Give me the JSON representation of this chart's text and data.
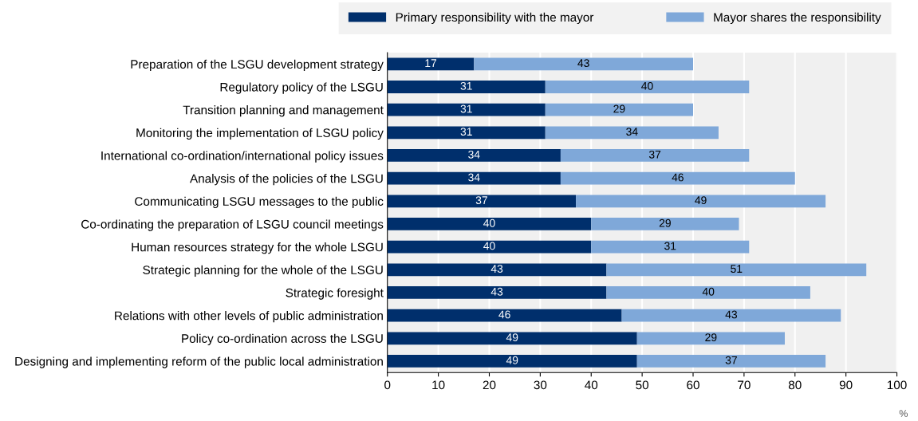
{
  "chart_data": {
    "type": "bar",
    "orientation": "horizontal",
    "stacked": true,
    "data_labels": true,
    "grid": "x",
    "legend": "top",
    "xlabel": "%",
    "categories": [
      "Preparation of the LSGU development strategy",
      "Regulatory policy of the LSGU",
      "Transition planning and management",
      "Monitoring the implementation of LSGU policy",
      "International co-ordination/international policy issues",
      "Analysis of the policies of the LSGU",
      "Communicating LSGU messages to the public",
      "Co-ordinating the preparation of LSGU council meetings",
      "Human resources strategy for the whole LSGU",
      "Strategic planning for the whole of the LSGU",
      "Strategic foresight",
      "Relations with other levels of public administration",
      "Policy co-ordination across the LSGU",
      "Designing and implementing reform of the public local administration"
    ],
    "series": [
      {
        "name": "Primary responsibility with the mayor",
        "color": "#002f6c",
        "values": [
          17,
          31,
          31,
          31,
          34,
          34,
          37,
          40,
          40,
          43,
          43,
          46,
          49,
          49
        ]
      },
      {
        "name": "Mayor shares the responsibility",
        "color": "#7fa8d9",
        "values": [
          43,
          40,
          29,
          34,
          37,
          46,
          49,
          29,
          31,
          51,
          40,
          43,
          29,
          37
        ]
      }
    ],
    "xlim": [
      0,
      100
    ],
    "xticks": [
      0,
      10,
      20,
      30,
      40,
      50,
      60,
      70,
      80,
      90,
      100
    ]
  }
}
